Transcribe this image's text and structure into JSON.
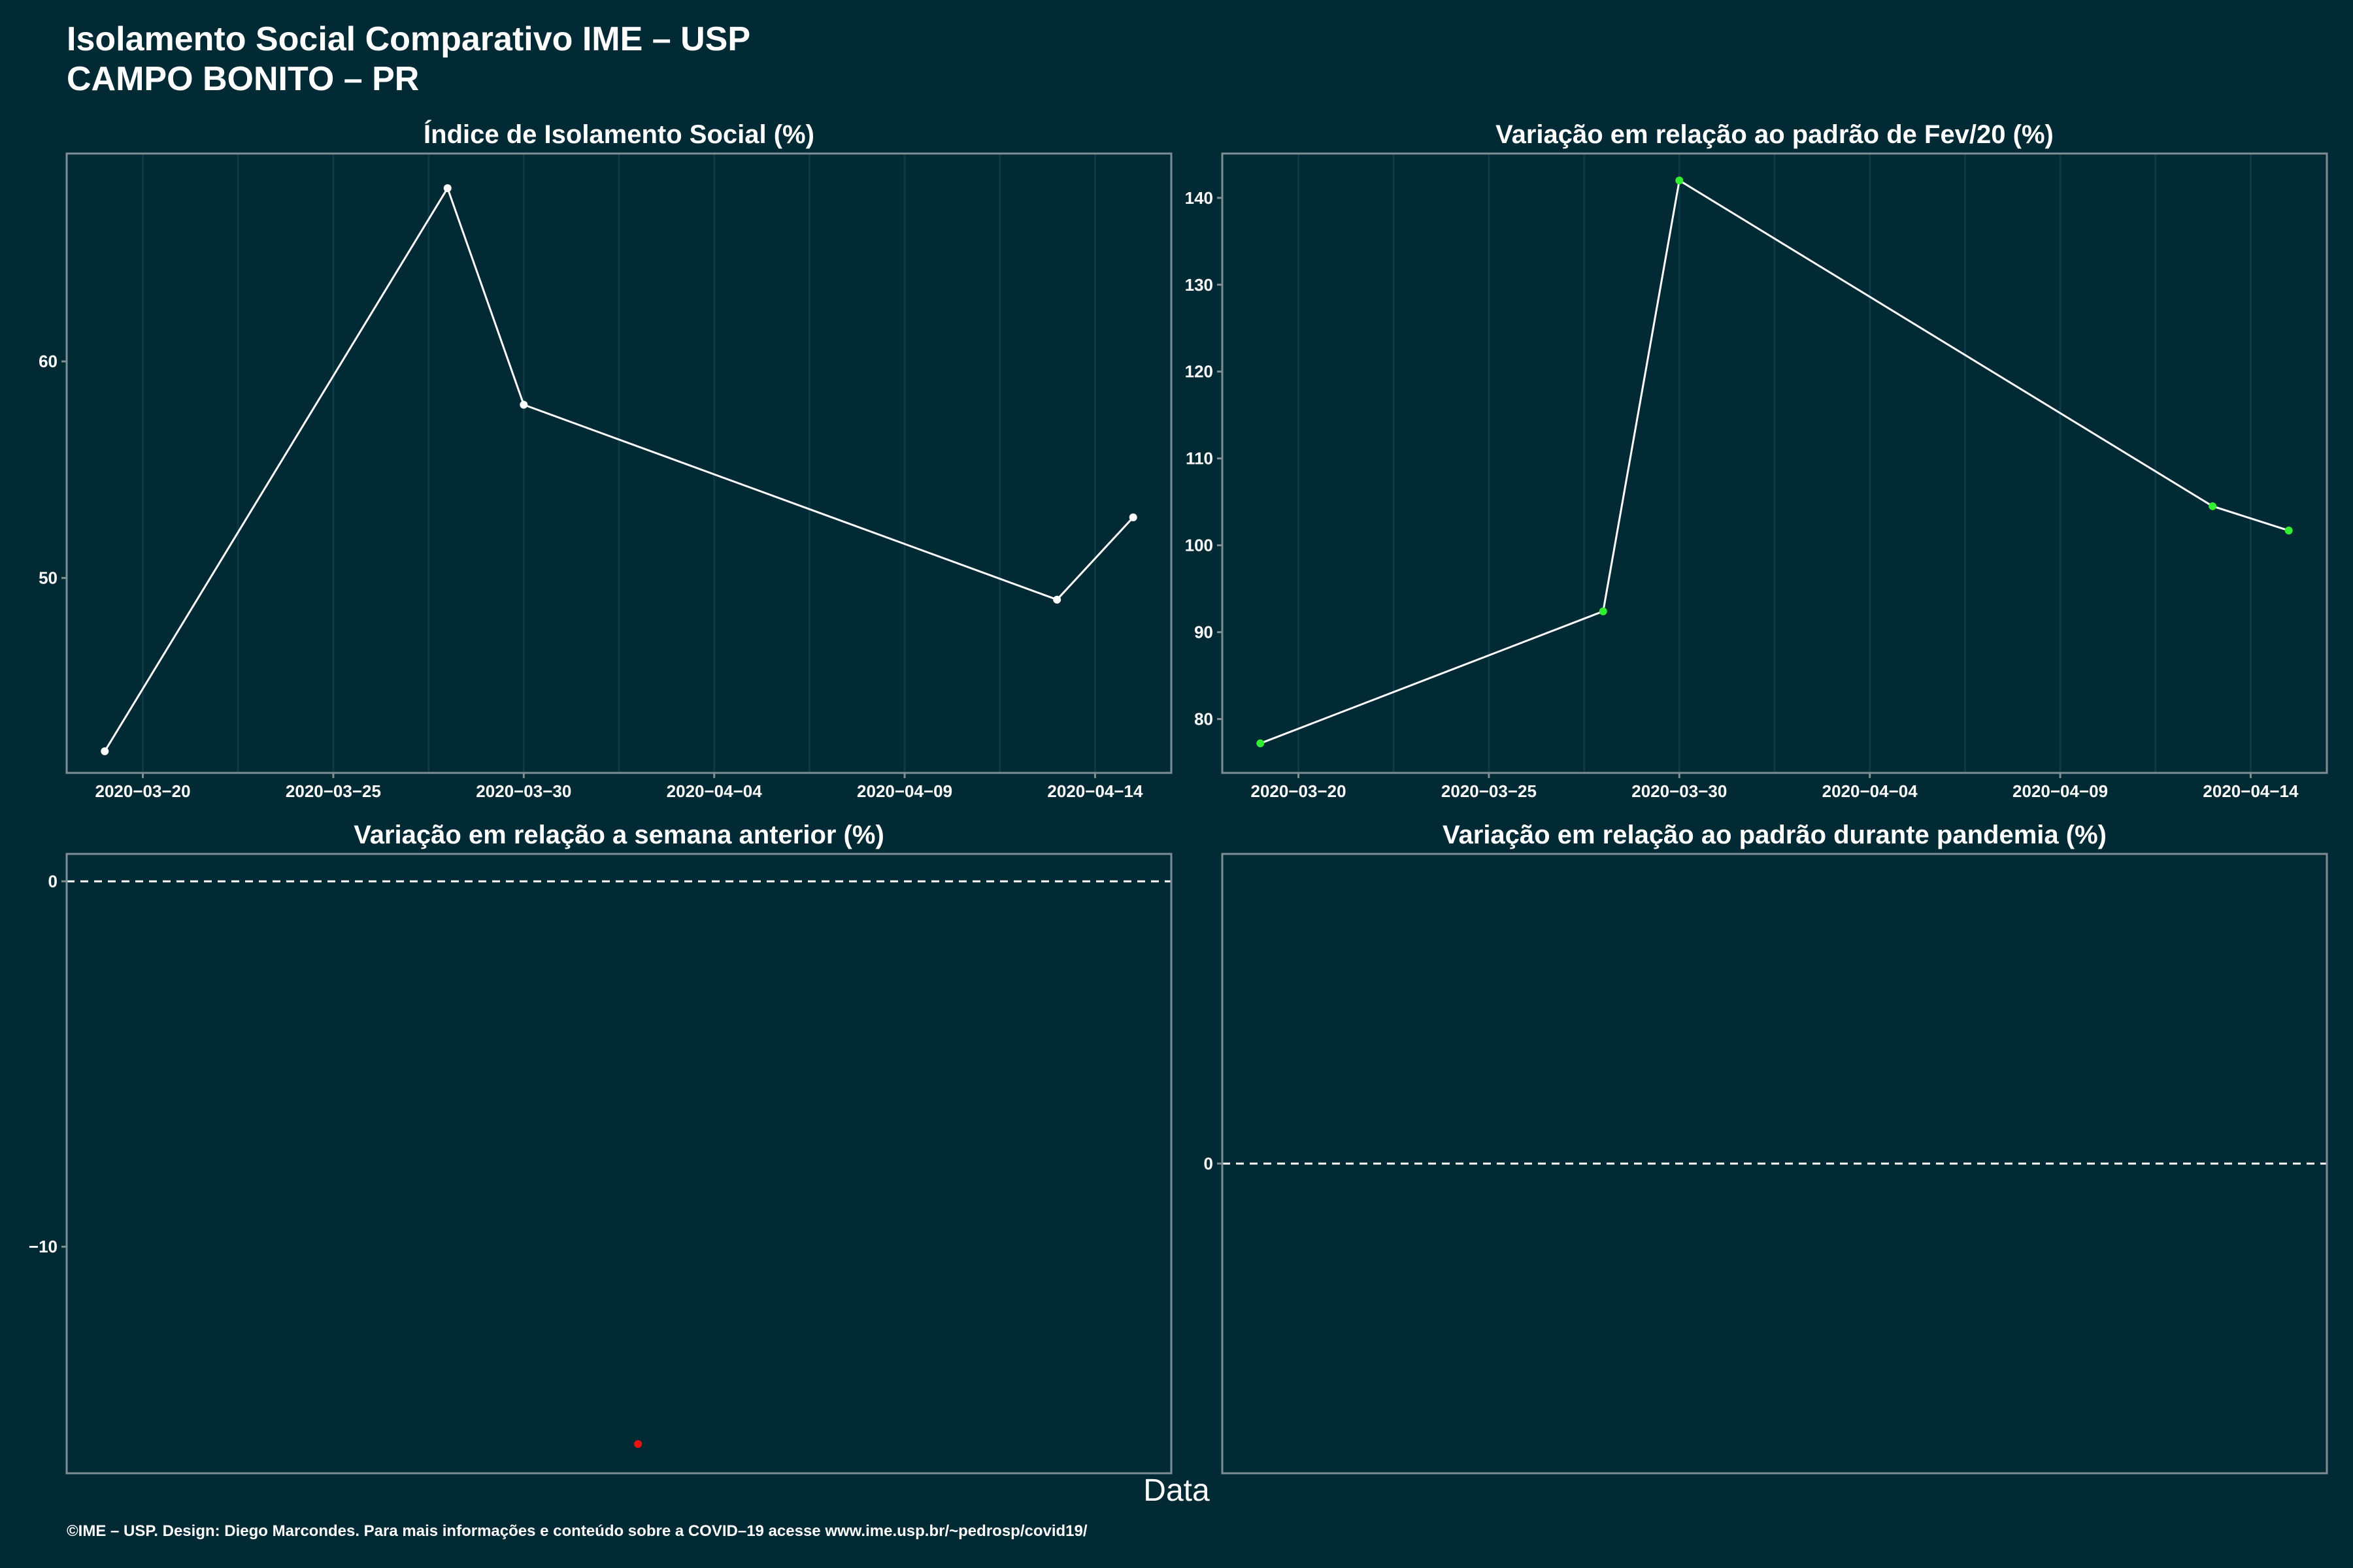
{
  "header": {
    "title_line1": "Isolamento Social Comparativo IME – USP",
    "title_line2": "CAMPO BONITO – PR"
  },
  "x_axis_title": "Data",
  "caption": "©IME – USP. Design: Diego Marcondes. Para mais informações e conteúdo sobre a COVID–19 acesse www.ime.usp.br/~pedrosp/covid19/",
  "colors": {
    "background": "#022a35",
    "panel_border": "#7d8f95",
    "grid": "#0e3a45",
    "line": "#ffffff",
    "point_white": "#ffffff",
    "point_green": "#33ee33",
    "point_red": "#ee1111"
  },
  "chart_data": [
    {
      "type": "line",
      "title": "Índice de Isolamento Social (%)",
      "x": [
        "2020-03-19",
        "2020-03-28",
        "2020-03-30",
        "2020-04-13",
        "2020-04-15"
      ],
      "y": [
        42,
        68,
        58,
        49,
        52.8
      ],
      "xlim": [
        "2020-03-18",
        "2020-04-16"
      ],
      "ylim": [
        41,
        69.6
      ],
      "yticks": [
        50,
        60
      ],
      "xticks": [
        "2020-03-20",
        "2020-03-25",
        "2020-03-30",
        "2020-04-04",
        "2020-04-09",
        "2020-04-14"
      ],
      "xtick_labels": [
        "2020−03−20",
        "2020−03−25",
        "2020−03−30",
        "2020−04−04",
        "2020−04−09",
        "2020−04−14"
      ],
      "point_colors": [
        "#ffffff",
        "#ffffff",
        "#ffffff",
        "#ffffff",
        "#ffffff"
      ],
      "show_x_axis": true,
      "grid": true
    },
    {
      "type": "line",
      "title": "Variação em relação ao padrão de Fev/20 (%)",
      "x": [
        "2020-03-19",
        "2020-03-28",
        "2020-03-30",
        "2020-04-13",
        "2020-04-15"
      ],
      "y": [
        77.2,
        92.4,
        142,
        104.5,
        101.7
      ],
      "xlim": [
        "2020-03-18",
        "2020-04-16"
      ],
      "ylim": [
        73.8,
        145.1
      ],
      "yticks": [
        80,
        90,
        100,
        110,
        120,
        130,
        140
      ],
      "xticks": [
        "2020-03-20",
        "2020-03-25",
        "2020-03-30",
        "2020-04-04",
        "2020-04-09",
        "2020-04-14"
      ],
      "xtick_labels": [
        "2020−03−20",
        "2020−03−25",
        "2020−03−30",
        "2020−04−04",
        "2020−04−09",
        "2020−04−14"
      ],
      "point_colors": [
        "#33ee33",
        "#33ee33",
        "#33ee33",
        "#33ee33",
        "#33ee33"
      ],
      "show_x_axis": true,
      "grid": true
    },
    {
      "type": "scatter",
      "title": "Variação em relação a semana anterior (%)",
      "x": [
        "2020-04-02"
      ],
      "y": [
        -15.4
      ],
      "xlim": [
        "2020-03-18",
        "2020-04-16"
      ],
      "ylim": [
        -16.2,
        0.75
      ],
      "yticks": [
        0,
        -10
      ],
      "ytick_labels": [
        "0",
        "−10"
      ],
      "point_colors": [
        "#ee1111"
      ],
      "reference_line": 0,
      "show_x_axis": false,
      "grid": false
    },
    {
      "type": "scatter",
      "title": "Variação em relação ao padrão durante pandemia (%)",
      "x": [],
      "y": [],
      "xlim": [
        "2020-03-18",
        "2020-04-16"
      ],
      "ylim": [
        -1,
        1
      ],
      "yticks": [
        0
      ],
      "reference_line": 0,
      "show_x_axis": false,
      "grid": false
    }
  ]
}
